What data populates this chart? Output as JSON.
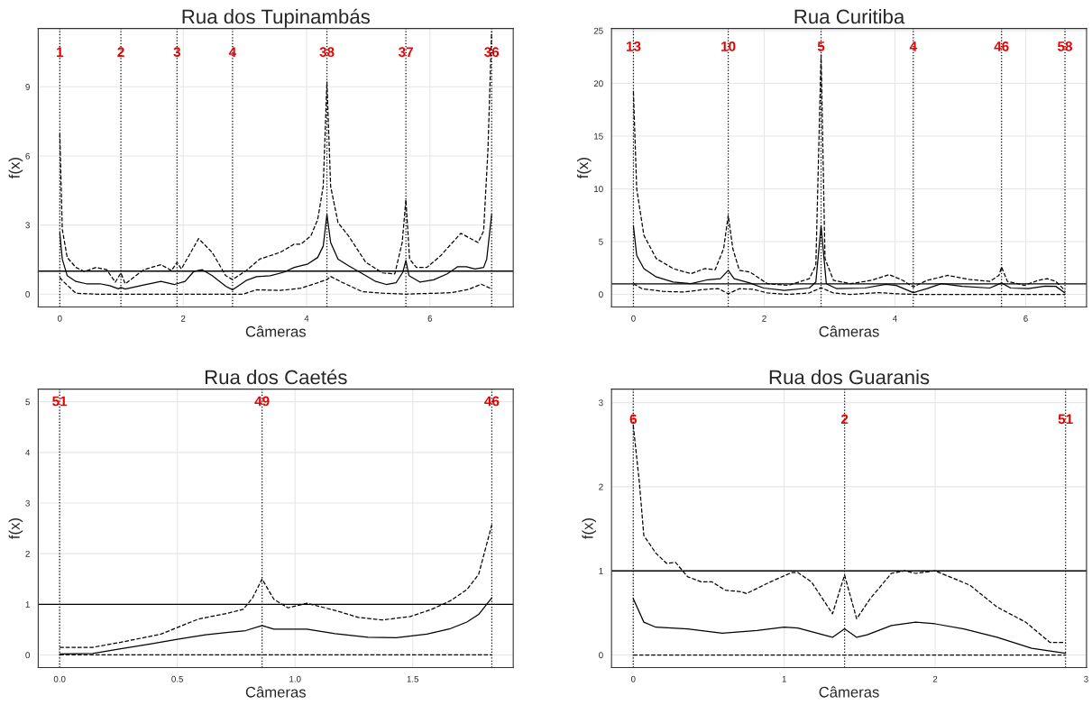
{
  "chart_data": [
    {
      "type": "line",
      "title": "Rua dos Tupinambás",
      "xlabel": "Câmeras",
      "ylabel": "f(x)",
      "xlim": [
        -0.35,
        7.35
      ],
      "ylim": [
        -0.56,
        11.53
      ],
      "xticks": [
        0,
        2,
        4,
        6
      ],
      "yticks": [
        0,
        3,
        6,
        9
      ],
      "grid": true,
      "series": [
        {
          "color": "#000000",
          "line_style": "solid",
          "x": [
            0,
            0.04,
            0.12,
            0.26,
            0.43,
            0.65,
            0.81,
            0.95,
            0.99,
            1.06,
            1.36,
            1.64,
            1.86,
            2.03,
            2.17,
            2.31,
            2.47,
            2.69,
            2.8,
            3.02,
            3.19,
            3.41,
            3.63,
            3.8,
            4.02,
            4.18,
            4.27,
            4.33,
            4.39,
            4.51,
            4.68,
            4.96,
            5.12,
            5.29,
            5.45,
            5.56,
            5.61,
            5.66,
            5.84,
            6.06,
            6.28,
            6.45,
            6.59,
            6.73,
            6.87,
            6.92,
            7.0
          ],
          "values": [
            2.67,
            1.52,
            0.8,
            0.55,
            0.45,
            0.45,
            0.37,
            0.23,
            0.29,
            0.22,
            0.4,
            0.55,
            0.42,
            0.55,
            0.98,
            1.06,
            0.8,
            0.34,
            0.19,
            0.59,
            0.76,
            0.8,
            0.95,
            1.16,
            1.31,
            1.59,
            2.09,
            3.46,
            2.24,
            1.52,
            1.23,
            0.8,
            0.55,
            0.42,
            0.49,
            0.95,
            1.46,
            0.8,
            0.52,
            0.62,
            0.88,
            1.19,
            1.19,
            1.09,
            1.16,
            1.52,
            3.46
          ]
        },
        {
          "color": "#000000",
          "line_style": "dashed",
          "x": [
            0,
            0.04,
            0.12,
            0.26,
            0.4,
            0.59,
            0.76,
            0.9,
            0.99,
            1.06,
            1.36,
            1.64,
            1.81,
            1.9,
            1.97,
            2.25,
            2.47,
            2.69,
            2.8,
            3.02,
            3.24,
            3.57,
            3.8,
            3.91,
            4.07,
            4.18,
            4.27,
            4.33,
            4.39,
            4.51,
            4.68,
            4.96,
            5.23,
            5.43,
            5.55,
            5.61,
            5.67,
            5.78,
            5.95,
            6.17,
            6.5,
            6.78,
            6.87,
            6.94,
            7.0
          ],
          "values": [
            6.97,
            2.81,
            1.59,
            1.16,
            0.98,
            1.16,
            1.06,
            0.52,
            0.92,
            0.45,
            1.06,
            1.28,
            1.02,
            1.38,
            1.09,
            2.41,
            1.81,
            0.8,
            0.63,
            1.02,
            1.52,
            1.81,
            2.17,
            2.17,
            2.53,
            3.24,
            4.68,
            9.2,
            4.68,
            3.1,
            2.53,
            1.38,
            0.92,
            0.88,
            2.24,
            4.1,
            1.52,
            1.16,
            1.16,
            1.66,
            2.64,
            2.24,
            2.74,
            6.26,
            11.4
          ]
        },
        {
          "color": "#000000",
          "line_style": "dashed",
          "x": [
            0,
            0.04,
            0.26,
            0.59,
            2.97,
            3.19,
            3.57,
            3.91,
            4.13,
            4.33,
            4.39,
            4.57,
            4.9,
            5.23,
            5.61,
            6.34,
            6.62,
            6.83,
            7.0
          ],
          "values": [
            0.73,
            0.59,
            0.04,
            0,
            0,
            0.19,
            0.16,
            0.26,
            0.45,
            0.63,
            0.77,
            0.52,
            0.11,
            0.04,
            0,
            0.06,
            0.2,
            0.43,
            0.23
          ]
        }
      ],
      "ref_lines": [
        {
          "axis": "y",
          "value": 1,
          "color": "#000000",
          "line_style": "solid"
        },
        {
          "axis": "x",
          "value": 0,
          "color": "#000000",
          "line_style": "dotted"
        },
        {
          "axis": "x",
          "value": 0.99,
          "color": "#000000",
          "line_style": "dotted"
        },
        {
          "axis": "x",
          "value": 1.9,
          "color": "#000000",
          "line_style": "dotted"
        },
        {
          "axis": "x",
          "value": 2.8,
          "color": "#000000",
          "line_style": "dotted"
        },
        {
          "axis": "x",
          "value": 4.33,
          "color": "#000000",
          "line_style": "dotted"
        },
        {
          "axis": "x",
          "value": 5.61,
          "color": "#000000",
          "line_style": "dotted"
        },
        {
          "axis": "x",
          "value": 7.0,
          "color": "#000000",
          "line_style": "dotted"
        }
      ],
      "annotations": [
        {
          "text": "1",
          "x": 0,
          "y": 10.46
        },
        {
          "text": "2",
          "x": 0.99,
          "y": 10.46
        },
        {
          "text": "3",
          "x": 1.9,
          "y": 10.46
        },
        {
          "text": "4",
          "x": 2.8,
          "y": 10.46
        },
        {
          "text": "38",
          "x": 4.33,
          "y": 10.46
        },
        {
          "text": "37",
          "x": 5.61,
          "y": 10.46
        },
        {
          "text": "36",
          "x": 7.0,
          "y": 10.46
        }
      ]
    },
    {
      "type": "line",
      "title": "Rua Curitiba",
      "xlabel": "Câmeras",
      "ylabel": "f(x)",
      "xlim": [
        -0.335,
        6.93
      ],
      "ylim": [
        -1.2,
        25.2
      ],
      "xticks": [
        0,
        2,
        4,
        6
      ],
      "yticks": [
        0,
        5,
        10,
        15,
        20,
        25
      ],
      "grid": true,
      "series": [
        {
          "color": "#000000",
          "line_style": "solid",
          "x": [
            0,
            0.05,
            0.16,
            0.35,
            0.61,
            0.88,
            1.14,
            1.33,
            1.45,
            1.54,
            1.78,
            1.99,
            2.31,
            2.69,
            2.79,
            2.87,
            2.95,
            3.11,
            3.54,
            3.86,
            4.02,
            4.28,
            4.49,
            4.71,
            5.03,
            5.45,
            5.63,
            5.77,
            6.04,
            6.3,
            6.46,
            6.6
          ],
          "values": [
            6.49,
            3.7,
            2.44,
            1.65,
            1.17,
            1.01,
            1.39,
            1.49,
            2.28,
            1.49,
            1.08,
            0.6,
            0.38,
            0.6,
            1.17,
            6.49,
            1.01,
            0.54,
            0.6,
            0.95,
            0.85,
            0.16,
            0.54,
            1.01,
            0.76,
            0.6,
            1.08,
            0.6,
            0.54,
            0.79,
            0.76,
            0.13
          ]
        },
        {
          "color": "#000000",
          "line_style": "dashed",
          "x": [
            0,
            0.05,
            0.16,
            0.35,
            0.61,
            0.88,
            1.09,
            1.25,
            1.38,
            1.45,
            1.52,
            1.62,
            1.78,
            2.05,
            2.37,
            2.69,
            2.79,
            2.87,
            2.93,
            3.06,
            3.32,
            3.64,
            3.91,
            4.12,
            4.28,
            4.49,
            4.81,
            5.13,
            5.45,
            5.59,
            5.63,
            5.72,
            5.98,
            6.19,
            6.33,
            6.46,
            6.6
          ],
          "values": [
            19.2,
            10.0,
            5.6,
            3.39,
            2.44,
            1.96,
            2.44,
            2.34,
            4.34,
            7.5,
            4.34,
            2.28,
            2.12,
            1.01,
            0.85,
            1.49,
            2.75,
            22.7,
            3.39,
            1.33,
            1.01,
            1.33,
            1.87,
            1.33,
            0.7,
            1.33,
            1.8,
            1.42,
            1.23,
            1.8,
            2.59,
            1.23,
            0.85,
            1.33,
            1.49,
            1.23,
            0.38
          ]
        },
        {
          "color": "#000000",
          "line_style": "dashed",
          "x": [
            0,
            0.13,
            0.45,
            0.77,
            1.09,
            1.3,
            1.45,
            1.62,
            1.84,
            2.05,
            2.37,
            2.69,
            2.87,
            3.06,
            3.32,
            3.75,
            4.02,
            4.28,
            6.6
          ],
          "values": [
            1.01,
            0.54,
            0.28,
            0.22,
            0.47,
            0.54,
            0.06,
            0.54,
            0.47,
            0.13,
            0,
            0.13,
            0.63,
            0.13,
            0,
            0.16,
            0.06,
            0,
            0
          ]
        }
      ],
      "ref_lines": [
        {
          "axis": "y",
          "value": 1,
          "color": "#000000",
          "line_style": "solid"
        },
        {
          "axis": "x",
          "value": 0,
          "color": "#000000",
          "line_style": "dotted"
        },
        {
          "axis": "x",
          "value": 1.45,
          "color": "#000000",
          "line_style": "dotted"
        },
        {
          "axis": "x",
          "value": 2.87,
          "color": "#000000",
          "line_style": "dotted"
        },
        {
          "axis": "x",
          "value": 4.28,
          "color": "#000000",
          "line_style": "dotted"
        },
        {
          "axis": "x",
          "value": 5.63,
          "color": "#000000",
          "line_style": "dotted"
        },
        {
          "axis": "x",
          "value": 6.6,
          "color": "#000000",
          "line_style": "dotted"
        }
      ],
      "annotations": [
        {
          "text": "13",
          "x": 0,
          "y": 23.4
        },
        {
          "text": "10",
          "x": 1.45,
          "y": 23.4
        },
        {
          "text": "5",
          "x": 2.87,
          "y": 23.4
        },
        {
          "text": "4",
          "x": 4.28,
          "y": 23.4
        },
        {
          "text": "46",
          "x": 5.63,
          "y": 23.4
        },
        {
          "text": "58",
          "x": 6.6,
          "y": 23.4
        }
      ]
    },
    {
      "type": "line",
      "title": "Rua dos Caetés",
      "xlabel": "Câmeras",
      "ylabel": "f(x)",
      "xlim": [
        -0.091,
        1.927
      ],
      "ylim": [
        -0.25,
        5.25
      ],
      "xticks": [
        {
          "value": 0,
          "label": "0.0"
        },
        0.5,
        {
          "value": 1,
          "label": "1.0"
        },
        1.5
      ],
      "yticks": [
        0,
        1,
        2,
        3,
        4,
        5
      ],
      "grid": true,
      "series": [
        {
          "color": "#000000",
          "line_style": "solid",
          "x": [
            0,
            0.14,
            0.26,
            0.39,
            0.5,
            0.62,
            0.79,
            0.86,
            0.91,
            1.05,
            1.17,
            1.31,
            1.43,
            1.56,
            1.66,
            1.73,
            1.78,
            1.836
          ],
          "values": [
            0.02,
            0.03,
            0.12,
            0.22,
            0.31,
            0.4,
            0.48,
            0.58,
            0.51,
            0.51,
            0.42,
            0.35,
            0.34,
            0.41,
            0.52,
            0.65,
            0.8,
            1.13
          ]
        },
        {
          "color": "#000000",
          "line_style": "dashed",
          "x": [
            0,
            0.14,
            0.26,
            0.43,
            0.59,
            0.71,
            0.78,
            0.82,
            0.86,
            0.91,
            0.97,
            1.05,
            1.17,
            1.27,
            1.37,
            1.49,
            1.58,
            1.66,
            1.73,
            1.78,
            1.836
          ],
          "values": [
            0.15,
            0.15,
            0.25,
            0.41,
            0.71,
            0.82,
            0.9,
            1.13,
            1.5,
            1.1,
            0.93,
            1.02,
            0.88,
            0.74,
            0.69,
            0.76,
            0.9,
            1.07,
            1.29,
            1.59,
            2.57
          ]
        },
        {
          "color": "#000000",
          "line_style": "dashed",
          "x": [
            0,
            1.836
          ],
          "values": [
            0,
            0
          ]
        }
      ],
      "ref_lines": [
        {
          "axis": "y",
          "value": 1,
          "color": "#000000",
          "line_style": "solid"
        },
        {
          "axis": "x",
          "value": 0,
          "color": "#000000",
          "line_style": "dotted"
        },
        {
          "axis": "x",
          "value": 0.86,
          "color": "#000000",
          "line_style": "dotted"
        },
        {
          "axis": "x",
          "value": 1.836,
          "color": "#000000",
          "line_style": "dotted"
        }
      ],
      "annotations": [
        {
          "text": "51",
          "x": 0,
          "y": 4.99
        },
        {
          "text": "49",
          "x": 0.86,
          "y": 4.99
        },
        {
          "text": "46",
          "x": 1.836,
          "y": 4.99
        }
      ]
    },
    {
      "type": "line",
      "title": "Rua dos Guaranis",
      "xlabel": "Câmeras",
      "ylabel": "f(x)",
      "xlim": [
        -0.144,
        3.003
      ],
      "ylim": [
        -0.15,
        3.16
      ],
      "xticks": [
        0,
        1,
        2,
        3
      ],
      "yticks": [
        0,
        1,
        2,
        3
      ],
      "grid": true,
      "series": [
        {
          "color": "#000000",
          "line_style": "solid",
          "x": [
            0,
            0.07,
            0.15,
            0.36,
            0.59,
            0.82,
            1.0,
            1.09,
            1.32,
            1.4,
            1.48,
            1.55,
            1.71,
            1.87,
            2.0,
            2.19,
            2.41,
            2.64,
            2.864
          ],
          "values": [
            0.67,
            0.39,
            0.33,
            0.31,
            0.26,
            0.29,
            0.33,
            0.32,
            0.21,
            0.31,
            0.21,
            0.24,
            0.35,
            0.39,
            0.37,
            0.31,
            0.21,
            0.08,
            0.02
          ]
        },
        {
          "color": "#000000",
          "line_style": "dashed",
          "x": [
            0,
            0.04,
            0.07,
            0.15,
            0.22,
            0.28,
            0.36,
            0.45,
            0.52,
            0.61,
            0.72,
            0.75,
            0.91,
            1.05,
            1.09,
            1.18,
            1.32,
            1.4,
            1.48,
            1.57,
            1.71,
            1.8,
            1.87,
            2.0,
            2.23,
            2.41,
            2.6,
            2.76,
            2.864
          ],
          "values": [
            2.73,
            2.06,
            1.42,
            1.21,
            1.09,
            1.1,
            0.93,
            0.87,
            0.87,
            0.77,
            0.75,
            0.73,
            0.87,
            0.98,
            0.98,
            0.87,
            0.49,
            0.95,
            0.43,
            0.67,
            0.97,
            1.0,
            0.97,
            1.0,
            0.83,
            0.57,
            0.39,
            0.15,
            0.15
          ]
        },
        {
          "color": "#000000",
          "line_style": "dashed",
          "x": [
            0,
            2.864
          ],
          "values": [
            0,
            0
          ]
        }
      ],
      "ref_lines": [
        {
          "axis": "y",
          "value": 1,
          "color": "#000000",
          "line_style": "solid"
        },
        {
          "axis": "x",
          "value": 0,
          "color": "#000000",
          "line_style": "dotted"
        },
        {
          "axis": "x",
          "value": 1.4,
          "color": "#000000",
          "line_style": "dotted"
        },
        {
          "axis": "x",
          "value": 2.864,
          "color": "#000000",
          "line_style": "dotted"
        }
      ],
      "annotations": [
        {
          "text": "6",
          "x": 0,
          "y": 2.79
        },
        {
          "text": "2",
          "x": 1.4,
          "y": 2.79
        },
        {
          "text": "51",
          "x": 2.864,
          "y": 2.79
        }
      ]
    }
  ]
}
